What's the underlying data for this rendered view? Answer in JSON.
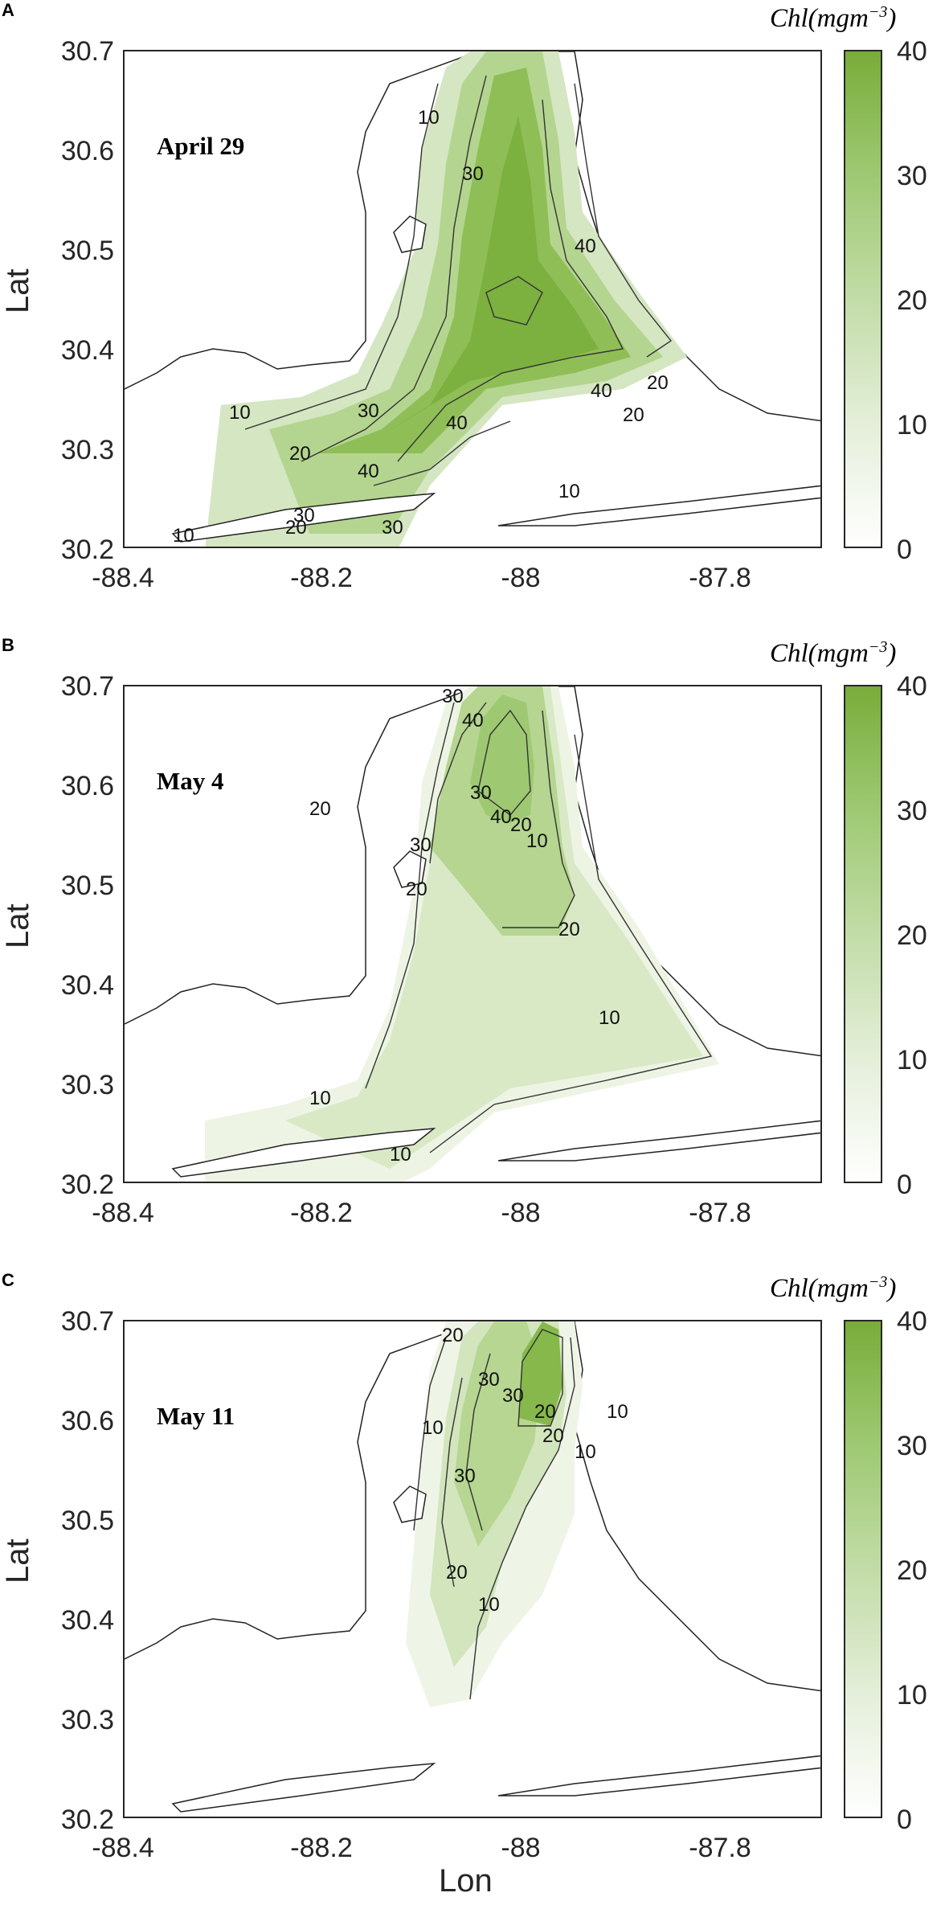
{
  "colorbar": {
    "title": "Chl(mgm",
    "title_exponent": "−3",
    "title_close": ")",
    "ticks": [
      "40",
      "30",
      "20",
      "10",
      "0"
    ],
    "color_min": "#ffffff",
    "color_max": "#78ac3a"
  },
  "axes": {
    "ylabel": "Lat",
    "xlabel": "Lon",
    "yticks": [
      "30.7",
      "30.6",
      "30.5",
      "30.4",
      "30.3",
      "30.2"
    ],
    "xticks": [
      "-88.4",
      "-88.2",
      "-88",
      "-87.8"
    ]
  },
  "panels": [
    {
      "letter": "A",
      "date": "April 29",
      "contour_labels": [
        "10",
        "20",
        "30",
        "40",
        "30",
        "20",
        "10",
        "40",
        "30",
        "20",
        "10",
        "30",
        "40",
        "20",
        "10",
        "40"
      ]
    },
    {
      "letter": "B",
      "date": "May 4",
      "contour_labels": [
        "30",
        "40",
        "30",
        "40",
        "20",
        "10",
        "30",
        "20",
        "20",
        "10",
        "10",
        "10",
        "20"
      ]
    },
    {
      "letter": "C",
      "date": "May 11",
      "contour_labels": [
        "20",
        "30",
        "30",
        "20",
        "10",
        "30",
        "20",
        "10",
        "10",
        "20",
        "10"
      ]
    }
  ]
}
